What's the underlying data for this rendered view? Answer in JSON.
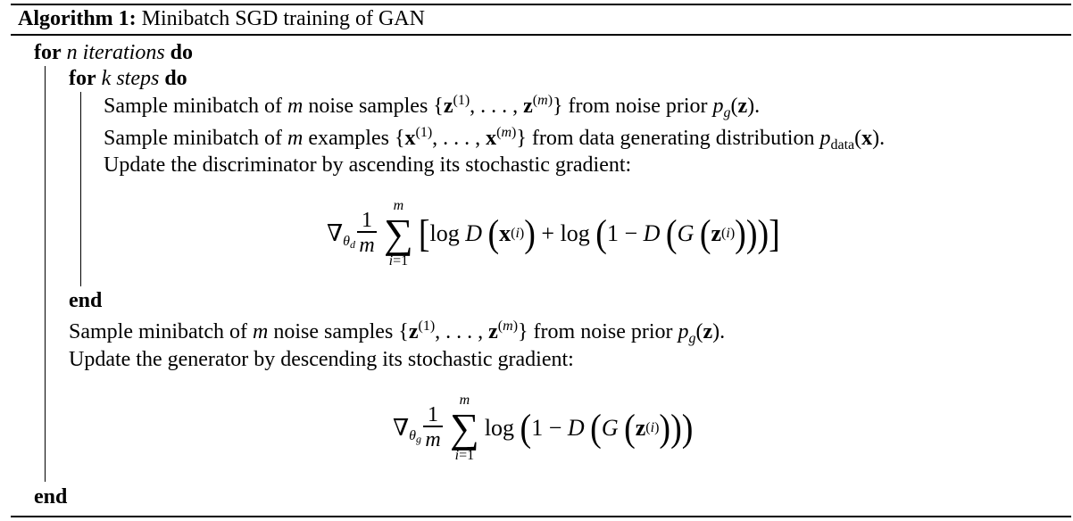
{
  "algorithm": {
    "label": "Algorithm 1:",
    "title": "Minibatch SGD training of GAN"
  },
  "lines": {
    "outer_for_kw": "for",
    "outer_for_var": "n",
    "outer_for_text": "iterations",
    "outer_do": "do",
    "inner_for_kw": "for",
    "inner_for_var": "k",
    "inner_for_text": "steps",
    "inner_do": "do",
    "noise_sample_pre": "Sample minibatch of",
    "noise_sample_mid": "noise samples",
    "noise_sample_post": "from noise prior",
    "data_sample_pre": "Sample minibatch of",
    "data_sample_mid": "examples",
    "data_sample_post": "from data generating distribution",
    "disc_update": "Update the discriminator by ascending its stochastic gradient:",
    "inner_end": "end",
    "gen_noise_pre": "Sample minibatch of",
    "gen_noise_mid": "noise samples",
    "gen_noise_post": "from noise prior",
    "gen_update": "Update the generator by descending its stochastic gradient:",
    "outer_end": "end"
  },
  "math": {
    "m": "m",
    "z_set": "{z(1), . . . , z(m)}",
    "x_set": "{x(1), . . . , x(m)}",
    "noise_prior": "pg(z).",
    "data_dist": "pdata(x).",
    "disc_gradient": "∇θd (1/m) Σ_{i=1}^{m} [log D(x(i)) + log(1 − D(G(z(i))))]",
    "gen_gradient": "∇θg (1/m) Σ_{i=1}^{m} log(1 − D(G(z(i))))"
  }
}
